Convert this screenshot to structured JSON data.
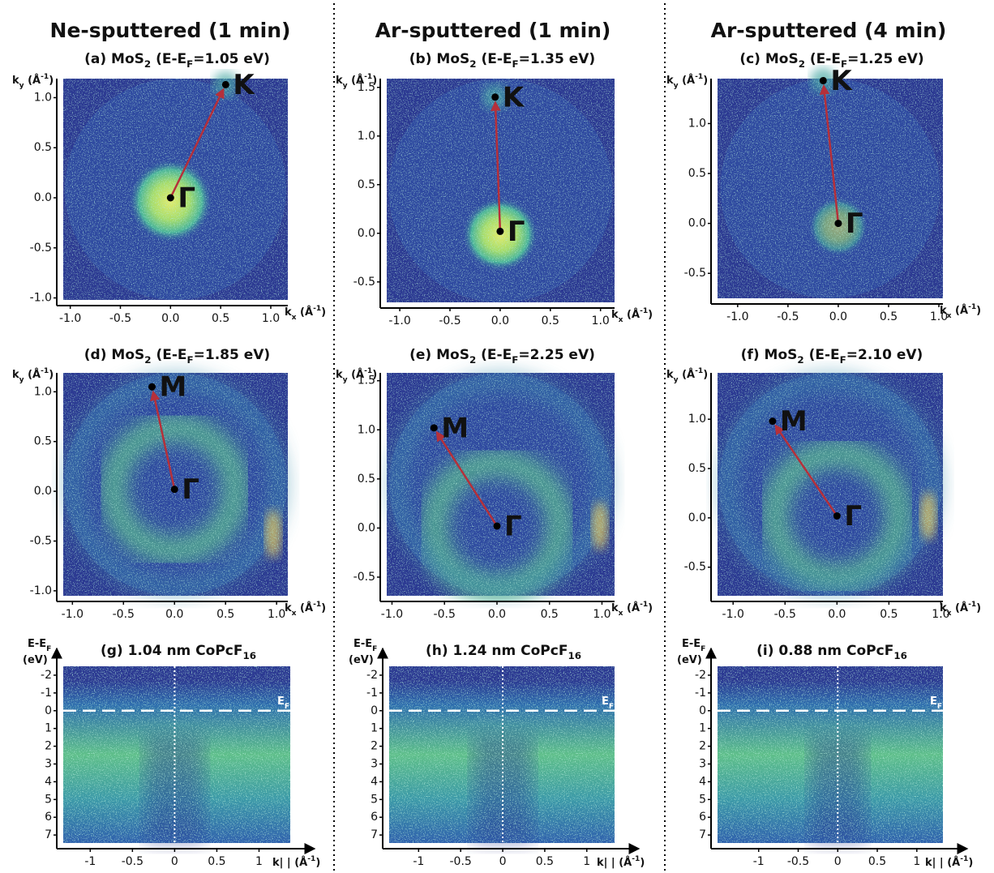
{
  "headers": [
    "Ne-sputtered (1 min)",
    "Ar-sputtered (1 min)",
    "Ar-sputtered (4 min)"
  ],
  "chart_data": [
    {
      "type": "heatmap",
      "title": [
        "(a) MoS",
        {
          "sub": "2"
        },
        " (E-E",
        {
          "sub": "F"
        },
        "=1.05 eV)"
      ],
      "xlabel": [
        "k",
        {
          "sub": "x"
        },
        " (Å",
        {
          "sup": "-1"
        },
        ")"
      ],
      "ylabel": [
        "k",
        {
          "sub": "y"
        },
        " (Å",
        {
          "sup": "-1"
        },
        ")"
      ],
      "xlim": [
        -1.07,
        1.17
      ],
      "ylim": [
        -1.02,
        1.19
      ],
      "xticks": [
        {
          "value": -1,
          "label": "-1.0"
        },
        -0.5,
        {
          "value": 0,
          "label": "0.0"
        },
        0.5,
        {
          "value": 1,
          "label": "1.0"
        }
      ],
      "yticks": [
        {
          "value": -1,
          "label": "-1.0"
        },
        -0.5,
        {
          "value": 0,
          "label": "0.0"
        },
        0.5,
        {
          "value": 1,
          "label": "1.0"
        }
      ],
      "points": [
        {
          "label": "K",
          "x": 0.55,
          "y": 1.13
        },
        {
          "label": "Γ",
          "x": 0,
          "y": 0
        }
      ]
    },
    {
      "type": "heatmap",
      "title": [
        "(b) MoS",
        {
          "sub": "2"
        },
        " (E-E",
        {
          "sub": "F"
        },
        "=1.35 eV)"
      ],
      "xlabel": [
        "k",
        {
          "sub": "x"
        },
        " (Å",
        {
          "sup": "-1"
        },
        ")"
      ],
      "ylabel": [
        "k",
        {
          "sub": "y"
        },
        " (Å",
        {
          "sup": "-1"
        },
        ")"
      ],
      "xlim": [
        -1.13,
        1.14
      ],
      "ylim": [
        -0.71,
        1.59
      ],
      "xticks": [
        {
          "value": -1,
          "label": "-1.0"
        },
        -0.5,
        {
          "value": 0,
          "label": "0.0"
        },
        0.5,
        {
          "value": 1,
          "label": "1.0"
        }
      ],
      "yticks": [
        -0.5,
        {
          "value": 0,
          "label": "0.0"
        },
        0.5,
        {
          "value": 1,
          "label": "1.0"
        },
        1.5
      ],
      "points": [
        {
          "label": "K",
          "x": -0.05,
          "y": 1.4
        },
        {
          "label": "Γ",
          "x": 0,
          "y": 0.02
        }
      ]
    },
    {
      "type": "heatmap",
      "title": [
        "(c) MoS",
        {
          "sub": "2"
        },
        " (E-E",
        {
          "sub": "F"
        },
        "=1.25 eV)"
      ],
      "xlabel": [
        "k",
        {
          "sub": "x"
        },
        " (Å",
        {
          "sup": "-1"
        },
        ")"
      ],
      "ylabel": [
        "k",
        {
          "sub": "y"
        },
        " (Å",
        {
          "sup": "-1"
        },
        ")"
      ],
      "xlim": [
        -1.2,
        1.04
      ],
      "ylim": [
        -0.75,
        1.45
      ],
      "xticks": [
        {
          "value": -1,
          "label": "-1.0"
        },
        -0.5,
        {
          "value": 0,
          "label": "0.0"
        },
        0.5,
        {
          "value": 1,
          "label": "1.0"
        }
      ],
      "yticks": [
        -0.5,
        {
          "value": 0,
          "label": "0.0"
        },
        0.5,
        {
          "value": 1,
          "label": "1.0"
        }
      ],
      "points": [
        {
          "label": "K",
          "x": -0.15,
          "y": 1.43
        },
        {
          "label": "Γ",
          "x": 0,
          "y": 0
        }
      ]
    },
    {
      "type": "heatmap",
      "title": [
        "(d) MoS",
        {
          "sub": "2"
        },
        " (E-E",
        {
          "sub": "F"
        },
        "=1.85 eV)"
      ],
      "xlabel": [
        "k",
        {
          "sub": "x"
        },
        " (Å",
        {
          "sup": "-1"
        },
        ")"
      ],
      "ylabel": [
        "k",
        {
          "sub": "y"
        },
        " (Å",
        {
          "sup": "-1"
        },
        ")"
      ],
      "xlim": [
        -1.09,
        1.11
      ],
      "ylim": [
        -1.05,
        1.19
      ],
      "xticks": [
        {
          "value": -1,
          "label": "-1.0"
        },
        -0.5,
        {
          "value": 0,
          "label": "0.0"
        },
        0.5,
        {
          "value": 1,
          "label": "1.0"
        }
      ],
      "yticks": [
        {
          "value": -1,
          "label": "-1.0"
        },
        -0.5,
        {
          "value": 0,
          "label": "0.0"
        },
        0.5,
        {
          "value": 1,
          "label": "1.0"
        }
      ],
      "points": [
        {
          "label": "M",
          "x": -0.22,
          "y": 1.05
        },
        {
          "label": "Γ",
          "x": 0,
          "y": 0.02
        }
      ]
    },
    {
      "type": "heatmap",
      "title": [
        "(e) MoS",
        {
          "sub": "2"
        },
        " (E-E",
        {
          "sub": "F"
        },
        "=2.25 eV)"
      ],
      "xlabel": [
        "k",
        {
          "sub": "x"
        },
        " (Å",
        {
          "sup": "-1"
        },
        ")"
      ],
      "ylabel": [
        "k",
        {
          "sub": "y"
        },
        " (Å",
        {
          "sup": "-1"
        },
        ")"
      ],
      "xlim": [
        -1.05,
        1.12
      ],
      "ylim": [
        -0.69,
        1.58
      ],
      "xticks": [
        {
          "value": -1,
          "label": "-1.0"
        },
        -0.5,
        {
          "value": 0,
          "label": "0.0"
        },
        0.5,
        {
          "value": 1,
          "label": "1.0"
        }
      ],
      "yticks": [
        -0.5,
        {
          "value": 0,
          "label": "0.0"
        },
        0.5,
        {
          "value": 1,
          "label": "1.0"
        },
        1.5
      ],
      "points": [
        {
          "label": "M",
          "x": -0.6,
          "y": 1.02
        },
        {
          "label": "Γ",
          "x": 0,
          "y": 0.02
        }
      ]
    },
    {
      "type": "heatmap",
      "title": [
        "(f) MoS",
        {
          "sub": "2"
        },
        " (E-E",
        {
          "sub": "F"
        },
        "=2.10 eV)"
      ],
      "xlabel": [
        "k",
        {
          "sub": "x"
        },
        " (Å",
        {
          "sup": "-1"
        },
        ")"
      ],
      "ylabel": [
        "k",
        {
          "sub": "y"
        },
        " (Å",
        {
          "sup": "-1"
        },
        ")"
      ],
      "xlim": [
        -1.15,
        1.02
      ],
      "ylim": [
        -0.79,
        1.47
      ],
      "xticks": [
        {
          "value": -1,
          "label": "-1.0"
        },
        -0.5,
        {
          "value": 0,
          "label": "0.0"
        },
        0.5,
        {
          "value": 1,
          "label": "1.0"
        }
      ],
      "yticks": [
        -0.5,
        {
          "value": 0,
          "label": "0.0"
        },
        0.5,
        {
          "value": 1,
          "label": "1.0"
        }
      ],
      "points": [
        {
          "label": "M",
          "x": -0.62,
          "y": 0.98
        },
        {
          "label": "Γ",
          "x": 0,
          "y": 0.02
        }
      ]
    },
    {
      "type": "band",
      "title": [
        "(g) 1.04 nm CoPcF",
        {
          "sub": "16"
        }
      ],
      "xlabel": [
        "k| | (Å",
        {
          "sup": "-1"
        },
        ")"
      ],
      "ylabel": [
        "E-E",
        {
          "sub": "F"
        }
      ],
      "ylabel_unit": "(eV)",
      "xlim": [
        -1.32,
        1.37
      ],
      "ylim": [
        7.45,
        -2.5
      ],
      "xticks": [
        -1,
        -0.5,
        0,
        0.5,
        1
      ],
      "yticks": [
        -2,
        -1,
        0,
        1,
        2,
        3,
        4,
        5,
        6,
        7
      ],
      "reference_lines": {
        "x": 0,
        "y": 0
      },
      "ef_label": [
        "E",
        {
          "sub": "F"
        }
      ]
    },
    {
      "type": "band",
      "title": [
        "(h) 1.24 nm CoPcF",
        {
          "sub": "16"
        }
      ],
      "xlabel": [
        "k| | (Å",
        {
          "sup": "-1"
        },
        ")"
      ],
      "ylabel": [
        "E-E",
        {
          "sub": "F"
        }
      ],
      "ylabel_unit": "(eV)",
      "xlim": [
        -1.35,
        1.33
      ],
      "ylim": [
        7.45,
        -2.5
      ],
      "xticks": [
        -1,
        -0.5,
        0,
        0.5,
        1
      ],
      "yticks": [
        -2,
        -1,
        0,
        1,
        2,
        3,
        4,
        5,
        6,
        7
      ],
      "reference_lines": {
        "x": 0,
        "y": 0
      },
      "ef_label": [
        "E",
        {
          "sub": "F"
        }
      ]
    },
    {
      "type": "band",
      "title": [
        "(i) 0.88 nm CoPcF",
        {
          "sub": "16"
        }
      ],
      "xlabel": [
        "k| | (Å",
        {
          "sup": "-1"
        },
        ")"
      ],
      "ylabel": [
        "E-E",
        {
          "sub": "F"
        }
      ],
      "ylabel_unit": "(eV)",
      "xlim": [
        -1.52,
        1.33
      ],
      "ylim": [
        7.45,
        -2.5
      ],
      "xticks": [
        -1,
        -0.5,
        0,
        0.5,
        1
      ],
      "yticks": [
        -2,
        -1,
        0,
        1,
        2,
        3,
        4,
        5,
        6,
        7
      ],
      "reference_lines": {
        "x": 0,
        "y": 0
      },
      "ef_label": [
        "E",
        {
          "sub": "F"
        }
      ]
    }
  ]
}
